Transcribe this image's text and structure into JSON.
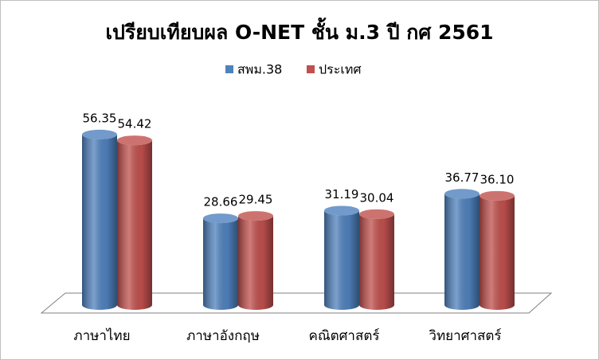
{
  "chart_data": {
    "type": "bar3d",
    "title": "เปรียบเทียบผล O-NET ชั้น ม.3 ปี กศ 2561",
    "categories": [
      "ภาษาไทย",
      "ภาษาอังกฤษ",
      "คณิตศาสตร์",
      "วิทยาศาสตร์"
    ],
    "series": [
      {
        "name": "สพม.38",
        "color": "#4f81bd",
        "values": [
          56.35,
          28.66,
          31.19,
          36.77
        ],
        "value_labels": [
          "56.35",
          "28.66",
          "31.19",
          "36.77"
        ]
      },
      {
        "name": "ประเทศ",
        "color": "#c0504d",
        "values": [
          54.42,
          29.45,
          30.04,
          36.1
        ],
        "value_labels": [
          "54.42",
          "29.45",
          "30.04",
          "36.10"
        ]
      }
    ],
    "legend": "top"
  }
}
